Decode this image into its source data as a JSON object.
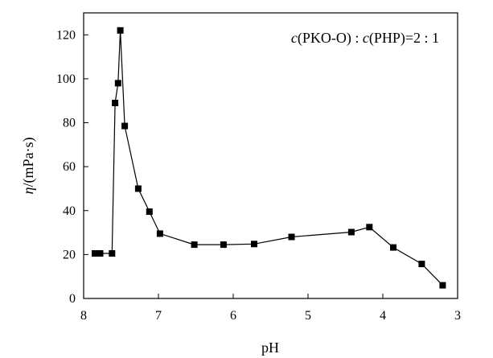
{
  "chart_data": {
    "type": "line",
    "title": "",
    "xlabel": "pH",
    "ylabel_symbol": "η",
    "ylabel_unit": "/(mPa·s)",
    "annotation": {
      "var1": "c",
      "text1": "(PKO-O) : ",
      "var2": "c",
      "text2": "(PHP)=2 : 1"
    },
    "xlim": [
      8,
      3
    ],
    "ylim": [
      0,
      130
    ],
    "xticks": [
      8,
      7,
      6,
      5,
      4,
      3
    ],
    "yticks": [
      0,
      20,
      40,
      60,
      80,
      100,
      120
    ],
    "grid": false,
    "legend": "none",
    "series": [
      {
        "x": [
          7.85,
          7.78,
          7.62,
          7.58,
          7.54,
          7.51,
          7.45,
          7.27,
          7.12,
          6.98,
          6.52,
          6.13,
          5.72,
          5.22,
          4.42,
          4.18,
          3.86,
          3.48,
          3.2
        ],
        "y": [
          20.5,
          20.5,
          20.5,
          89,
          98,
          122,
          78.5,
          50,
          39.5,
          29.5,
          24.5,
          24.5,
          24.8,
          28,
          30.2,
          32.5,
          23.2,
          15.7,
          6
        ],
        "color": "#000000"
      }
    ]
  }
}
